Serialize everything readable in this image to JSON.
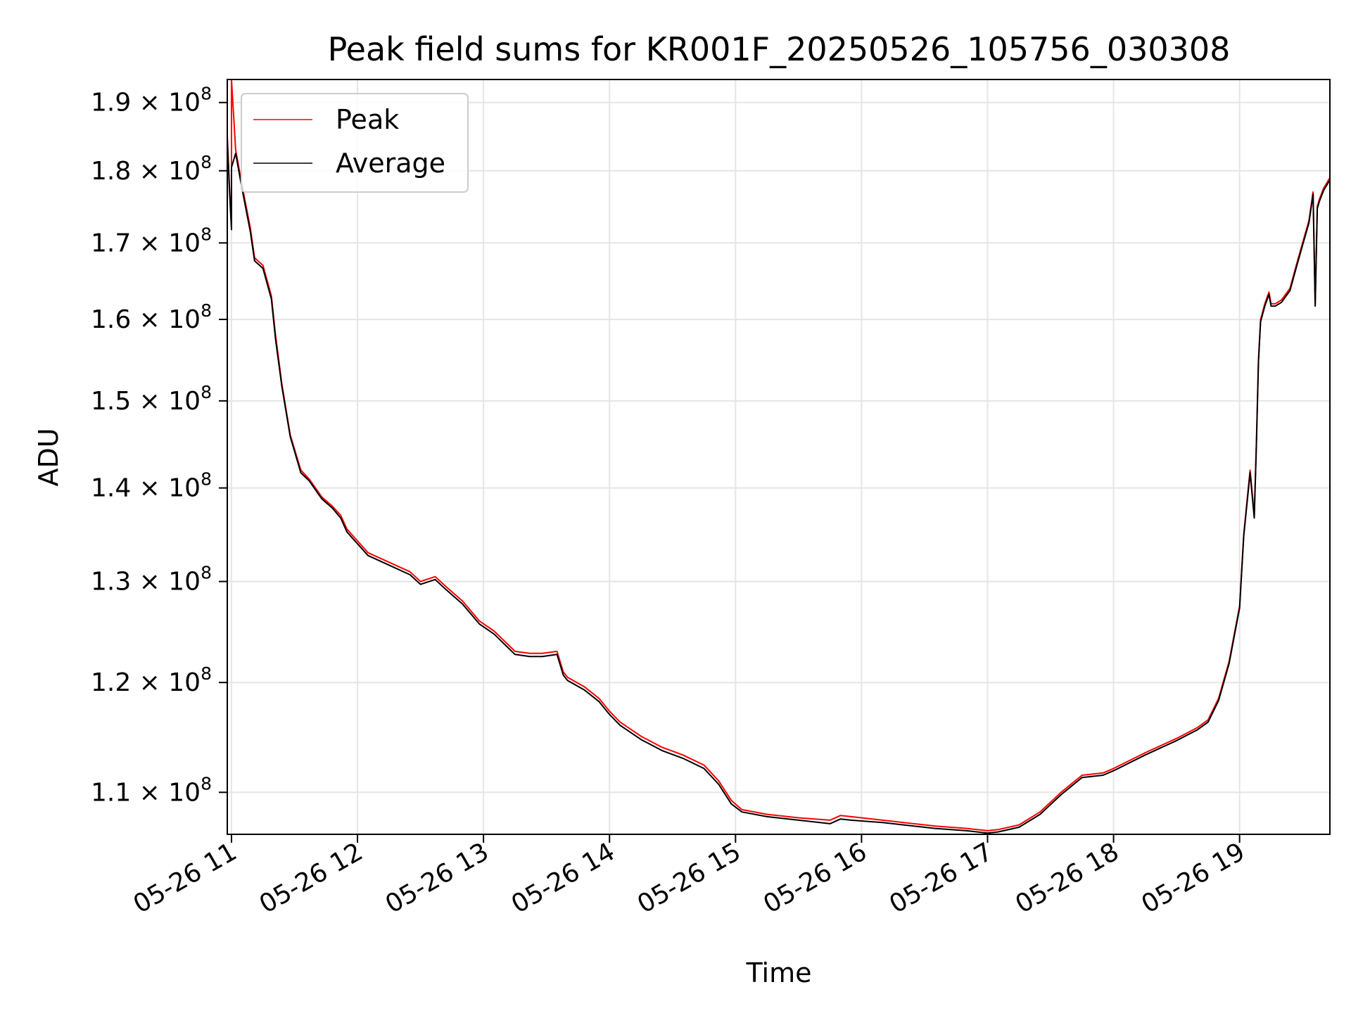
{
  "chart_data": {
    "type": "line",
    "title": "Peak field sums for KR001F_20250526_105756_030308",
    "xlabel": "Time",
    "ylabel": "ADU",
    "yscale": "log",
    "grid": true,
    "legend_position": "top-left",
    "xlim": [
      "2025-05-26 10:58",
      "2025-05-26 19:43"
    ],
    "ylim": [
      106400000,
      193500000
    ],
    "x_ticks": [
      {
        "label": "05-26 11",
        "value": "2025-05-26 11:00"
      },
      {
        "label": "05-26 12",
        "value": "2025-05-26 12:00"
      },
      {
        "label": "05-26 13",
        "value": "2025-05-26 13:00"
      },
      {
        "label": "05-26 14",
        "value": "2025-05-26 14:00"
      },
      {
        "label": "05-26 15",
        "value": "2025-05-26 15:00"
      },
      {
        "label": "05-26 16",
        "value": "2025-05-26 16:00"
      },
      {
        "label": "05-26 17",
        "value": "2025-05-26 17:00"
      },
      {
        "label": "05-26 18",
        "value": "2025-05-26 18:00"
      },
      {
        "label": "05-26 19",
        "value": "2025-05-26 19:00"
      }
    ],
    "y_ticks": [
      {
        "mantissa": "1.1",
        "value": 110000000
      },
      {
        "mantissa": "1.2",
        "value": 120000000
      },
      {
        "mantissa": "1.3",
        "value": 130000000
      },
      {
        "mantissa": "1.4",
        "value": 140000000
      },
      {
        "mantissa": "1.5",
        "value": 150000000
      },
      {
        "mantissa": "1.6",
        "value": 160000000
      },
      {
        "mantissa": "1.7",
        "value": 170000000
      },
      {
        "mantissa": "1.8",
        "value": 180000000
      },
      {
        "mantissa": "1.9",
        "value": 190000000
      }
    ],
    "y_tick_multiplier": "× 10",
    "y_tick_exponent": "8",
    "series": [
      {
        "name": "Peak",
        "color": "#ff0000",
        "x": [
          "2025-05-26 10:58",
          "2025-05-26 10:59",
          "2025-05-26 11:00",
          "2025-05-26 11:00",
          "2025-05-26 11:02",
          "2025-05-26 11:05",
          "2025-05-26 11:09",
          "2025-05-26 11:11",
          "2025-05-26 11:15",
          "2025-05-26 11:19",
          "2025-05-26 11:21",
          "2025-05-26 11:24",
          "2025-05-26 11:28",
          "2025-05-26 11:33",
          "2025-05-26 11:37",
          "2025-05-26 11:43",
          "2025-05-26 11:48",
          "2025-05-26 11:52",
          "2025-05-26 11:55",
          "2025-05-26 11:57",
          "2025-05-26 12:05",
          "2025-05-26 12:15",
          "2025-05-26 12:25",
          "2025-05-26 12:30",
          "2025-05-26 12:37",
          "2025-05-26 12:42",
          "2025-05-26 12:50",
          "2025-05-26 12:58",
          "2025-05-26 13:05",
          "2025-05-26 13:15",
          "2025-05-26 13:22",
          "2025-05-26 13:28",
          "2025-05-26 13:35",
          "2025-05-26 13:38",
          "2025-05-26 13:40",
          "2025-05-26 13:48",
          "2025-05-26 13:55",
          "2025-05-26 14:00",
          "2025-05-26 14:05",
          "2025-05-26 14:15",
          "2025-05-26 14:25",
          "2025-05-26 14:35",
          "2025-05-26 14:45",
          "2025-05-26 14:52",
          "2025-05-26 14:58",
          "2025-05-26 15:03",
          "2025-05-26 15:15",
          "2025-05-26 15:30",
          "2025-05-26 15:45",
          "2025-05-26 15:50",
          "2025-05-26 15:55",
          "2025-05-26 16:10",
          "2025-05-26 16:20",
          "2025-05-26 16:35",
          "2025-05-26 16:50",
          "2025-05-26 17:00",
          "2025-05-26 17:05",
          "2025-05-26 17:15",
          "2025-05-26 17:25",
          "2025-05-26 17:35",
          "2025-05-26 17:45",
          "2025-05-26 17:55",
          "2025-05-26 18:00",
          "2025-05-26 18:15",
          "2025-05-26 18:30",
          "2025-05-26 18:40",
          "2025-05-26 18:45",
          "2025-05-26 18:50",
          "2025-05-26 18:55",
          "2025-05-26 19:00",
          "2025-05-26 19:02",
          "2025-05-26 19:05",
          "2025-05-26 19:07",
          "2025-05-26 19:08",
          "2025-05-26 19:09",
          "2025-05-26 19:10",
          "2025-05-26 19:12",
          "2025-05-26 19:14",
          "2025-05-26 19:15",
          "2025-05-26 19:17",
          "2025-05-26 19:20",
          "2025-05-26 19:24",
          "2025-05-26 19:27",
          "2025-05-26 19:30",
          "2025-05-26 19:33",
          "2025-05-26 19:35",
          "2025-05-26 19:36",
          "2025-05-26 19:37",
          "2025-05-26 19:38",
          "2025-05-26 19:40",
          "2025-05-26 19:43"
        ],
        "values": [
          185000000,
          178000000,
          172000000,
          194000000,
          183000000,
          178000000,
          172000000,
          168000000,
          167000000,
          163000000,
          158000000,
          152000000,
          146000000,
          142000000,
          141000000,
          139000000,
          138000000,
          137000000,
          135500000,
          135000000,
          133000000,
          132000000,
          131000000,
          130000000,
          130500000,
          129500000,
          128000000,
          126000000,
          125000000,
          123000000,
          122800000,
          122800000,
          123000000,
          121000000,
          120500000,
          119600000,
          118500000,
          117300000,
          116300000,
          115000000,
          114000000,
          113300000,
          112400000,
          111000000,
          109300000,
          108500000,
          108100000,
          107800000,
          107600000,
          108000000,
          107900000,
          107600000,
          107400000,
          107100000,
          106900000,
          106700000,
          106800000,
          107200000,
          108300000,
          110000000,
          111500000,
          111700000,
          112100000,
          113500000,
          114800000,
          115800000,
          116500000,
          118500000,
          122000000,
          127500000,
          135000000,
          142000000,
          137000000,
          145000000,
          155000000,
          160000000,
          162000000,
          163500000,
          162000000,
          162000000,
          162500000,
          164000000,
          167000000,
          170000000,
          173000000,
          177000000,
          162000000,
          175000000,
          176000000,
          177500000,
          179000000
        ]
      },
      {
        "name": "Average",
        "color": "#000000",
        "x": [
          "2025-05-26 10:58",
          "2025-05-26 10:59",
          "2025-05-26 11:00",
          "2025-05-26 11:00",
          "2025-05-26 11:02",
          "2025-05-26 11:05",
          "2025-05-26 11:09",
          "2025-05-26 11:11",
          "2025-05-26 11:15",
          "2025-05-26 11:19",
          "2025-05-26 11:21",
          "2025-05-26 11:24",
          "2025-05-26 11:28",
          "2025-05-26 11:33",
          "2025-05-26 11:37",
          "2025-05-26 11:43",
          "2025-05-26 11:48",
          "2025-05-26 11:52",
          "2025-05-26 11:55",
          "2025-05-26 11:57",
          "2025-05-26 12:05",
          "2025-05-26 12:15",
          "2025-05-26 12:25",
          "2025-05-26 12:30",
          "2025-05-26 12:37",
          "2025-05-26 12:42",
          "2025-05-26 12:50",
          "2025-05-26 12:58",
          "2025-05-26 13:05",
          "2025-05-26 13:15",
          "2025-05-26 13:22",
          "2025-05-26 13:28",
          "2025-05-26 13:35",
          "2025-05-26 13:38",
          "2025-05-26 13:40",
          "2025-05-26 13:48",
          "2025-05-26 13:55",
          "2025-05-26 14:00",
          "2025-05-26 14:05",
          "2025-05-26 14:15",
          "2025-05-26 14:25",
          "2025-05-26 14:35",
          "2025-05-26 14:45",
          "2025-05-26 14:52",
          "2025-05-26 14:58",
          "2025-05-26 15:03",
          "2025-05-26 15:15",
          "2025-05-26 15:30",
          "2025-05-26 15:45",
          "2025-05-26 15:50",
          "2025-05-26 15:55",
          "2025-05-26 16:10",
          "2025-05-26 16:20",
          "2025-05-26 16:35",
          "2025-05-26 16:50",
          "2025-05-26 17:00",
          "2025-05-26 17:05",
          "2025-05-26 17:15",
          "2025-05-26 17:25",
          "2025-05-26 17:35",
          "2025-05-26 17:45",
          "2025-05-26 17:55",
          "2025-05-26 18:00",
          "2025-05-26 18:15",
          "2025-05-26 18:30",
          "2025-05-26 18:40",
          "2025-05-26 18:45",
          "2025-05-26 18:50",
          "2025-05-26 18:55",
          "2025-05-26 19:00",
          "2025-05-26 19:02",
          "2025-05-26 19:05",
          "2025-05-26 19:07",
          "2025-05-26 19:08",
          "2025-05-26 19:09",
          "2025-05-26 19:10",
          "2025-05-26 19:12",
          "2025-05-26 19:14",
          "2025-05-26 19:15",
          "2025-05-26 19:17",
          "2025-05-26 19:20",
          "2025-05-26 19:24",
          "2025-05-26 19:27",
          "2025-05-26 19:30",
          "2025-05-26 19:33",
          "2025-05-26 19:35",
          "2025-05-26 19:36",
          "2025-05-26 19:37",
          "2025-05-26 19:38",
          "2025-05-26 19:40",
          "2025-05-26 19:43"
        ],
        "values": [
          184500000,
          177500000,
          171800000,
          180500000,
          182500000,
          177500000,
          171500000,
          167600000,
          166600000,
          162600000,
          157500000,
          151700000,
          145800000,
          141700000,
          140800000,
          138800000,
          137800000,
          136700000,
          135200000,
          134700000,
          132700000,
          131700000,
          130700000,
          129700000,
          130200000,
          129200000,
          127700000,
          125700000,
          124700000,
          122700000,
          122500000,
          122500000,
          122700000,
          120700000,
          120200000,
          119300000,
          118200000,
          117000000,
          116000000,
          114700000,
          113700000,
          113000000,
          112100000,
          110700000,
          109000000,
          108300000,
          107900000,
          107600000,
          107300000,
          107700000,
          107600000,
          107400000,
          107200000,
          106900000,
          106700000,
          106500000,
          106600000,
          107000000,
          108100000,
          109800000,
          111300000,
          111500000,
          111900000,
          113300000,
          114600000,
          115600000,
          116300000,
          118300000,
          121800000,
          127300000,
          134800000,
          141700000,
          136700000,
          144700000,
          154700000,
          159700000,
          161700000,
          163200000,
          161700000,
          161700000,
          162200000,
          163700000,
          166700000,
          169700000,
          172700000,
          176700000,
          161700000,
          174700000,
          175700000,
          177200000,
          178700000
        ]
      }
    ]
  }
}
